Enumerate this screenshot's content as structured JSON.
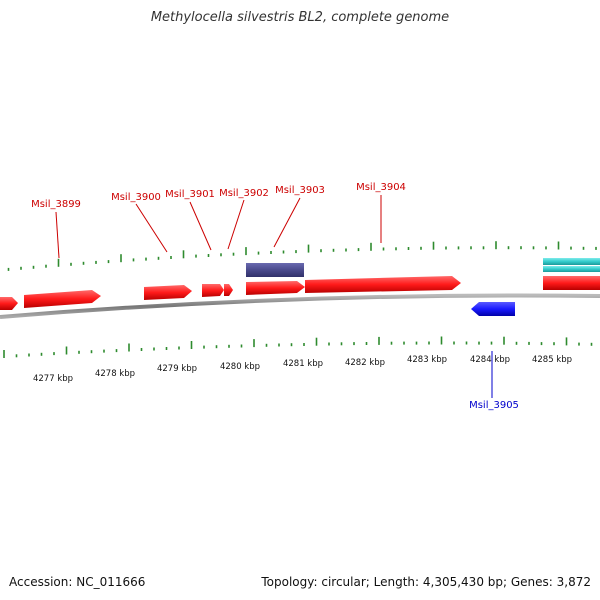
{
  "title": "Methylocella silvestris BL2, complete genome",
  "accession_text": "Accession: NC_011666",
  "summary_text": "Topology: circular; Length: 4,305,430 bp; Genes: 3,872",
  "colors": {
    "forward_gene": "#ff1a1a",
    "reverse_gene": "#1a1aff",
    "rna_feature": "#4a4a8c",
    "other_feature": "#33cccc",
    "backbone": "#888888",
    "tick": "#2e8b2e",
    "forward_label": "#cc0000",
    "reverse_label": "#0000cc"
  },
  "scale_labels": [
    "4277 kbp",
    "4278 kbp",
    "4279 kbp",
    "4280 kbp",
    "4281 kbp",
    "4282 kbp",
    "4283 kbp",
    "4284 kbp",
    "4285 kbp"
  ],
  "forward_gene_labels": [
    "Msil_3899",
    "Msil_3900",
    "Msil_3901",
    "Msil_3902",
    "Msil_3903",
    "Msil_3904"
  ],
  "reverse_gene_labels": [
    "Msil_3905"
  ]
}
